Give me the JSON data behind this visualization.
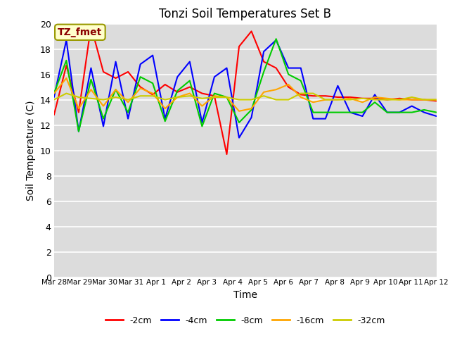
{
  "title": "Tonzi Soil Temperatures Set B",
  "xlabel": "Time",
  "ylabel": "Soil Temperature (C)",
  "annotation_text": "TZ_fmet",
  "annotation_color": "#8B0000",
  "annotation_bg": "#FFFFCC",
  "annotation_border": "#999900",
  "ylim": [
    0,
    20
  ],
  "yticks": [
    0,
    2,
    4,
    6,
    8,
    10,
    12,
    14,
    16,
    18,
    20
  ],
  "xtick_labels": [
    "Mar 28",
    "Mar 29",
    "Mar 30",
    "Mar 31",
    "Apr 1",
    "Apr 2",
    "Apr 3",
    "Apr 4",
    "Apr 5",
    "Apr 6",
    "Apr 7",
    "Apr 8",
    "Apr 9",
    "Apr 10",
    "Apr 11",
    "Apr 12"
  ],
  "plot_bg": "#DCDCDC",
  "fig_bg": "#FFFFFF",
  "grid_color": "#FFFFFF",
  "series": {
    "-2cm": {
      "color": "#FF0000",
      "data": [
        12.8,
        16.7,
        13.0,
        19.8,
        16.2,
        15.7,
        16.2,
        15.0,
        14.4,
        15.2,
        14.6,
        15.0,
        14.5,
        14.3,
        9.7,
        18.2,
        19.4,
        17.0,
        16.5,
        15.0,
        14.4,
        14.3,
        14.3,
        14.2,
        14.2,
        14.1,
        14.1,
        14.0,
        14.1,
        14.0,
        14.0,
        13.9
      ]
    },
    "-4cm": {
      "color": "#0000FF",
      "data": [
        14.2,
        18.7,
        11.5,
        16.5,
        11.9,
        17.0,
        12.5,
        16.8,
        17.5,
        12.5,
        15.8,
        17.0,
        12.2,
        15.8,
        16.5,
        11.0,
        12.6,
        17.8,
        18.7,
        16.5,
        16.5,
        12.5,
        12.5,
        15.1,
        13.0,
        12.7,
        14.4,
        13.0,
        13.0,
        13.5,
        13.0,
        12.7
      ]
    },
    "-8cm": {
      "color": "#00CC00",
      "data": [
        14.5,
        17.1,
        11.5,
        15.6,
        12.5,
        14.8,
        13.0,
        15.8,
        15.3,
        12.3,
        14.7,
        15.5,
        11.9,
        14.5,
        14.2,
        12.2,
        13.2,
        16.2,
        18.8,
        16.0,
        15.5,
        13.0,
        13.0,
        13.0,
        13.0,
        13.0,
        13.8,
        13.0,
        13.0,
        13.0,
        13.2,
        13.0
      ]
    },
    "-16cm": {
      "color": "#FFA500",
      "data": [
        14.5,
        15.7,
        13.3,
        14.8,
        13.5,
        14.8,
        13.8,
        14.9,
        14.5,
        13.3,
        14.2,
        14.5,
        13.5,
        14.3,
        14.2,
        13.1,
        13.3,
        14.6,
        14.8,
        15.2,
        14.2,
        13.8,
        14.0,
        14.0,
        14.1,
        13.8,
        14.2,
        14.1,
        14.0,
        14.0,
        14.0,
        14.0
      ]
    },
    "-32cm": {
      "color": "#CCCC00",
      "data": [
        14.0,
        14.5,
        14.2,
        14.1,
        14.0,
        14.2,
        14.0,
        14.3,
        14.3,
        14.0,
        14.2,
        14.3,
        14.1,
        14.2,
        14.2,
        14.0,
        14.0,
        14.3,
        14.0,
        14.0,
        14.5,
        14.5,
        14.0,
        14.0,
        14.0,
        14.1,
        14.0,
        14.0,
        14.0,
        14.2,
        14.0,
        14.0
      ]
    }
  }
}
